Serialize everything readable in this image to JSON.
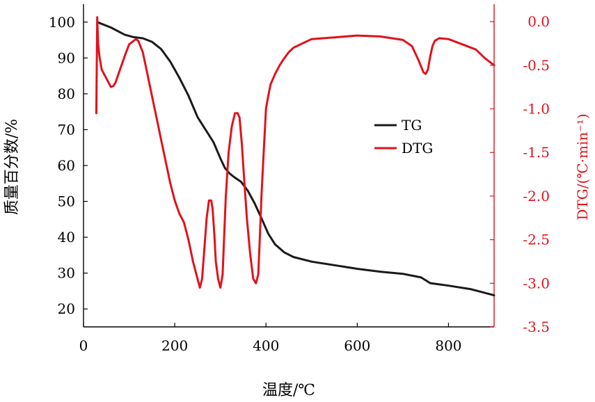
{
  "chart_data": {
    "type": "line",
    "xlabel": "温度/℃",
    "ylabel": "质量百分数/%",
    "y2label": "DTG/(℃·min⁻¹)",
    "xlim": [
      0,
      900
    ],
    "ylim": [
      15,
      105
    ],
    "y2lim": [
      -3.5,
      0.2
    ],
    "x_ticks": [
      0,
      200,
      400,
      600,
      800
    ],
    "y_ticks": [
      20,
      30,
      40,
      50,
      60,
      70,
      80,
      90,
      100
    ],
    "y2_ticks": [
      0.0,
      -0.5,
      -1.0,
      -1.5,
      -2.0,
      -2.5,
      -3.0,
      -3.5
    ],
    "y2_tick_labels": [
      "0.0",
      "-0.5",
      "-1.0",
      "-1.5",
      "-2.0",
      "-2.5",
      "-3.0",
      "-3.5"
    ],
    "grid": false,
    "legend": "center-right",
    "series": [
      {
        "name": "TG",
        "axis": "left",
        "color": "#1a1a1a",
        "x": [
          30,
          60,
          90,
          110,
          130,
          150,
          170,
          190,
          210,
          230,
          250,
          270,
          285,
          300,
          310,
          320,
          330,
          345,
          360,
          375,
          390,
          405,
          420,
          440,
          460,
          500,
          550,
          600,
          650,
          700,
          740,
          750,
          760,
          800,
          850,
          900
        ],
        "y": [
          100,
          98.5,
          96.5,
          95.8,
          95.5,
          94.5,
          92.5,
          89,
          84.5,
          79.5,
          73.5,
          69.5,
          66.5,
          62,
          59.3,
          57.8,
          56.8,
          55.5,
          53,
          49.5,
          45.3,
          41,
          38,
          35.8,
          34.5,
          33.2,
          32.2,
          31.2,
          30.4,
          29.8,
          28.8,
          28.0,
          27.2,
          26.5,
          25.5,
          23.8
        ]
      },
      {
        "name": "DTG",
        "axis": "right",
        "color": "#e0121b",
        "x": [
          28,
          29,
          30,
          32,
          35,
          40,
          50,
          60,
          65,
          70,
          80,
          90,
          100,
          110,
          115,
          120,
          130,
          140,
          150,
          160,
          170,
          180,
          190,
          200,
          210,
          220,
          230,
          240,
          250,
          255,
          260,
          265,
          270,
          275,
          280,
          283,
          287,
          290,
          295,
          300,
          305,
          308,
          312,
          318,
          325,
          332,
          338,
          342,
          347,
          352,
          358,
          365,
          372,
          378,
          383,
          386,
          390,
          395,
          400,
          405,
          410,
          420,
          430,
          440,
          450,
          460,
          480,
          500,
          550,
          600,
          650,
          700,
          720,
          735,
          745,
          750,
          755,
          760,
          765,
          770,
          780,
          800,
          820,
          840,
          860,
          880,
          900
        ],
        "y": [
          -1.05,
          -0.55,
          0.05,
          -0.25,
          -0.4,
          -0.55,
          -0.65,
          -0.75,
          -0.74,
          -0.7,
          -0.55,
          -0.4,
          -0.26,
          -0.22,
          -0.2,
          -0.22,
          -0.35,
          -0.6,
          -0.85,
          -1.1,
          -1.35,
          -1.6,
          -1.85,
          -2.05,
          -2.2,
          -2.3,
          -2.5,
          -2.75,
          -2.95,
          -3.05,
          -2.95,
          -2.6,
          -2.25,
          -2.05,
          -2.05,
          -2.15,
          -2.45,
          -2.75,
          -2.95,
          -3.05,
          -2.9,
          -2.5,
          -2.0,
          -1.5,
          -1.2,
          -1.05,
          -1.05,
          -1.1,
          -1.4,
          -1.8,
          -2.25,
          -2.65,
          -2.95,
          -3.0,
          -2.9,
          -2.55,
          -2.0,
          -1.5,
          -1.0,
          -0.85,
          -0.72,
          -0.6,
          -0.5,
          -0.42,
          -0.35,
          -0.3,
          -0.25,
          -0.2,
          -0.18,
          -0.16,
          -0.17,
          -0.21,
          -0.28,
          -0.45,
          -0.58,
          -0.6,
          -0.55,
          -0.4,
          -0.28,
          -0.22,
          -0.19,
          -0.2,
          -0.24,
          -0.28,
          -0.32,
          -0.42,
          -0.5
        ]
      }
    ]
  }
}
